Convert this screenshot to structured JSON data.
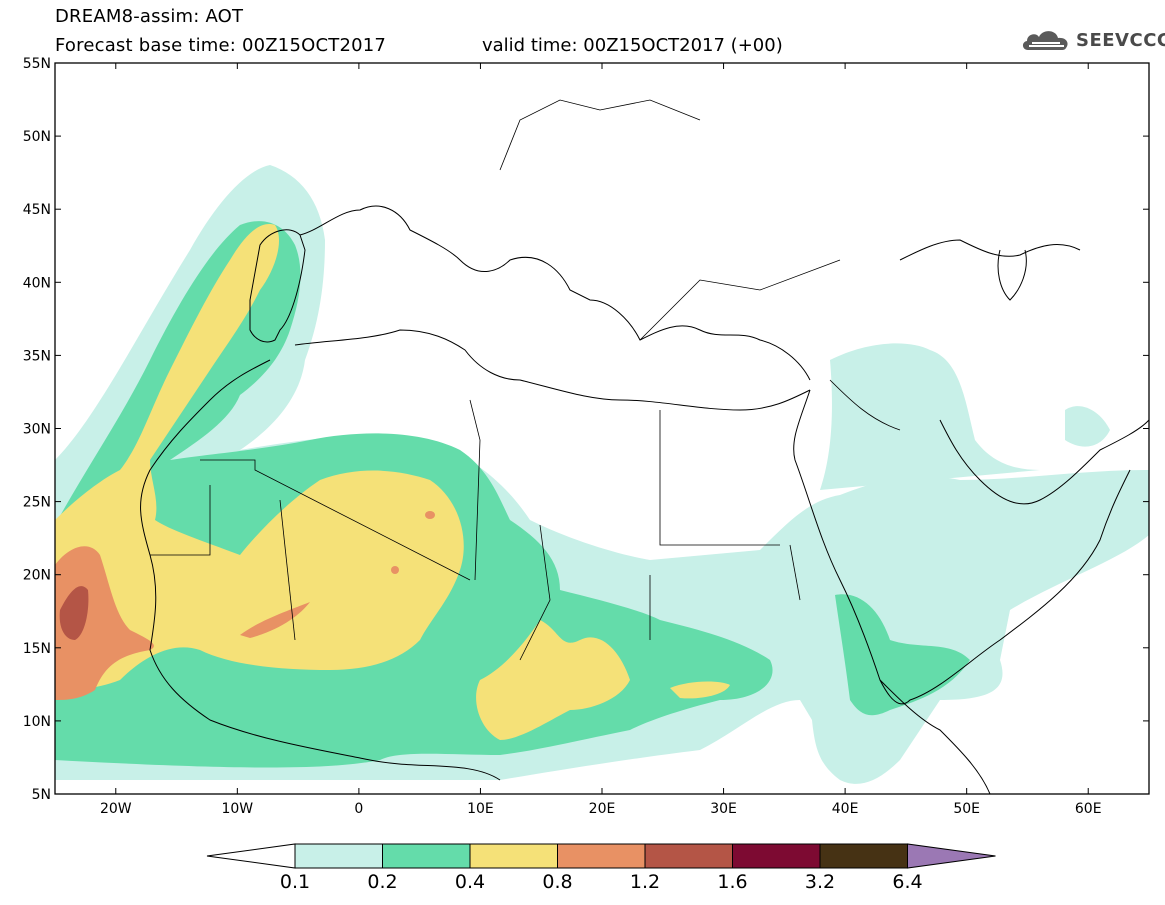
{
  "header": {
    "title": "DREAM8-assim: AOT",
    "base_time": "Forecast base time: 00Z15OCT2017",
    "valid_time": "valid time: 00Z15OCT2017 (+00)",
    "logo_text": "SEEVCCC",
    "logo_icon": "cloud-icon"
  },
  "map": {
    "lon_range": [
      -25,
      65
    ],
    "lat_range": [
      5,
      55
    ],
    "lon_ticks": [
      {
        "value": -20,
        "label": "20W"
      },
      {
        "value": -10,
        "label": "10W"
      },
      {
        "value": 0,
        "label": "0"
      },
      {
        "value": 10,
        "label": "10E"
      },
      {
        "value": 20,
        "label": "20E"
      },
      {
        "value": 30,
        "label": "30E"
      },
      {
        "value": 40,
        "label": "40E"
      },
      {
        "value": 50,
        "label": "50E"
      },
      {
        "value": 60,
        "label": "60E"
      }
    ],
    "lat_ticks": [
      {
        "value": 55,
        "label": "55N"
      },
      {
        "value": 50,
        "label": "50N"
      },
      {
        "value": 45,
        "label": "45N"
      },
      {
        "value": 40,
        "label": "40N"
      },
      {
        "value": 35,
        "label": "35N"
      },
      {
        "value": 30,
        "label": "30N"
      },
      {
        "value": 25,
        "label": "25N"
      },
      {
        "value": 20,
        "label": "20N"
      },
      {
        "value": 15,
        "label": "15N"
      },
      {
        "value": 10,
        "label": "10N"
      },
      {
        "value": 5,
        "label": "5N"
      }
    ]
  },
  "colorbar": {
    "bins": [
      {
        "color": "#c8f0e8"
      },
      {
        "color": "#64dcaa"
      },
      {
        "color": "#f5e178"
      },
      {
        "color": "#e89164"
      },
      {
        "color": "#b45546"
      },
      {
        "color": "#7d0a32"
      },
      {
        "color": "#463214"
      }
    ],
    "under_color": "#ffffff",
    "over_color": "#9b78b4",
    "labels": [
      "0.1",
      "0.2",
      "0.4",
      "0.8",
      "1.2",
      "1.6",
      "3.2",
      "6.4"
    ]
  }
}
